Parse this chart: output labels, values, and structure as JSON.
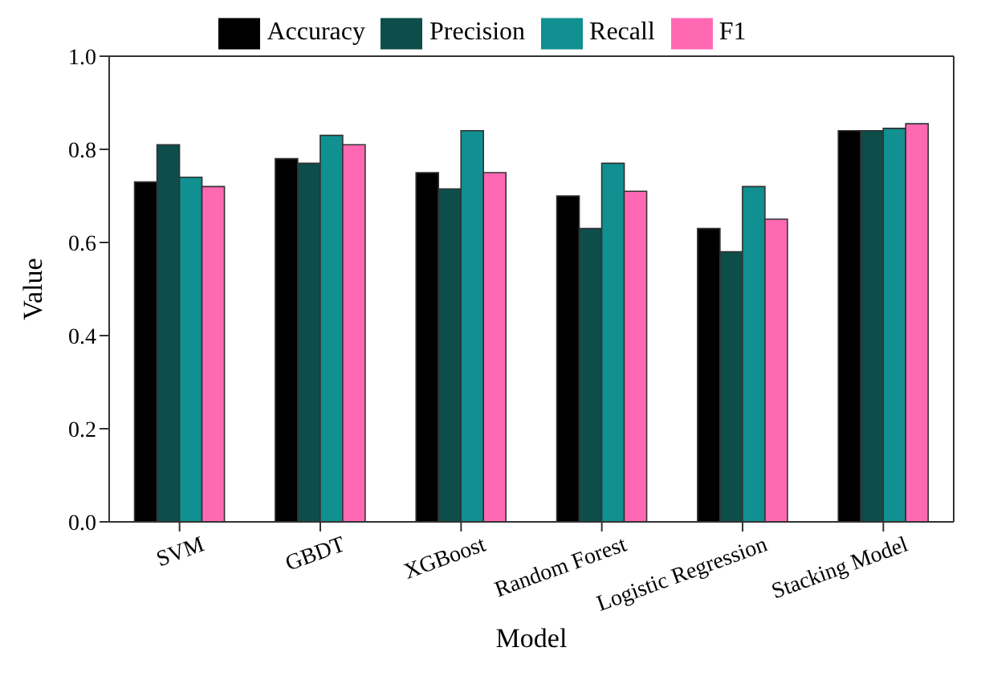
{
  "chart_data": {
    "type": "bar",
    "xlabel": "Model",
    "ylabel": "Value",
    "categories": [
      "SVM",
      "GBDT",
      "XGBoost",
      "Random Forest",
      "Logistic Regression",
      "Stacking Model"
    ],
    "series": [
      {
        "name": "Accuracy",
        "color": "#000000",
        "values": [
          0.73,
          0.78,
          0.75,
          0.7,
          0.63,
          0.84
        ]
      },
      {
        "name": "Precision",
        "color": "#0d4d4a",
        "values": [
          0.81,
          0.77,
          0.715,
          0.63,
          0.58,
          0.84
        ]
      },
      {
        "name": "Recall",
        "color": "#109090",
        "values": [
          0.74,
          0.83,
          0.84,
          0.77,
          0.72,
          0.845
        ]
      },
      {
        "name": "F1",
        "color": "#ff69b4",
        "values": [
          0.72,
          0.81,
          0.75,
          0.71,
          0.65,
          0.855
        ]
      }
    ],
    "ylim": [
      0,
      1
    ],
    "yticks": [
      {
        "value": 0,
        "label": "0.0"
      },
      0.2,
      0.4,
      0.6,
      0.8,
      {
        "value": 1,
        "label": "1.0"
      }
    ],
    "grid": false,
    "legend": "top"
  }
}
